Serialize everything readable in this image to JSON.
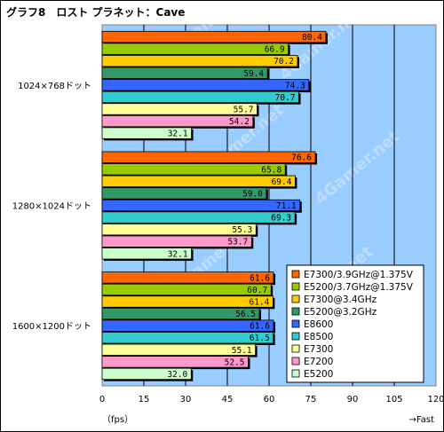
{
  "chart_data": {
    "type": "bar",
    "orientation": "horizontal",
    "title": "グラフ8　ロスト プラネット：Cave",
    "categories": [
      "1024×768ドット",
      "1280×1024ドット",
      "1600×1200ドット"
    ],
    "series": [
      {
        "name": "E7300/3.9GHz@1.375V",
        "color": "#ff6600",
        "values": [
          80.4,
          76.6,
          61.6
        ]
      },
      {
        "name": "E5200/3.7GHz@1.375V",
        "color": "#99cc00",
        "values": [
          66.9,
          65.8,
          60.7
        ]
      },
      {
        "name": "E7300@3.4GHz",
        "color": "#ffcc00",
        "values": [
          70.2,
          69.4,
          61.4
        ]
      },
      {
        "name": "E5200@3.2GHz",
        "color": "#339966",
        "values": [
          59.4,
          59.0,
          56.5
        ]
      },
      {
        "name": "E8600",
        "color": "#3366ff",
        "values": [
          74.3,
          71.1,
          61.6
        ]
      },
      {
        "name": "E8500",
        "color": "#33cccc",
        "values": [
          70.7,
          69.3,
          61.5
        ]
      },
      {
        "name": "E7300",
        "color": "#ffff99",
        "values": [
          55.7,
          55.3,
          55.1
        ]
      },
      {
        "name": "E7200",
        "color": "#ff99cc",
        "values": [
          54.2,
          53.7,
          52.5
        ]
      },
      {
        "name": "E5200",
        "color": "#ccffcc",
        "values": [
          32.1,
          32.1,
          32.0
        ]
      }
    ],
    "value_labels": [
      [
        "80.4",
        "66.9",
        "70.2",
        "59.4",
        "74.3",
        "70.7",
        "55.7",
        "54.2",
        "32.1"
      ],
      [
        "76.6",
        "65.8",
        "69.4",
        "59.0",
        "71.1",
        "69.3",
        "55.3",
        "53.7",
        "32.1"
      ],
      [
        "61.6",
        "60.7",
        "61.4",
        "56.5",
        "61.6",
        "61.5",
        "55.1",
        "52.5",
        "32.0"
      ]
    ],
    "xlim": [
      0,
      120
    ],
    "xticks": [
      "0",
      "15",
      "30",
      "45",
      "60",
      "75",
      "90",
      "105",
      "120"
    ],
    "xlabel": "（fps）",
    "xlabel_right": "→Fast",
    "watermark": "4Gamer.net",
    "grid": true,
    "legend_position": "bottom-right",
    "plot_background": "#99ccff"
  }
}
